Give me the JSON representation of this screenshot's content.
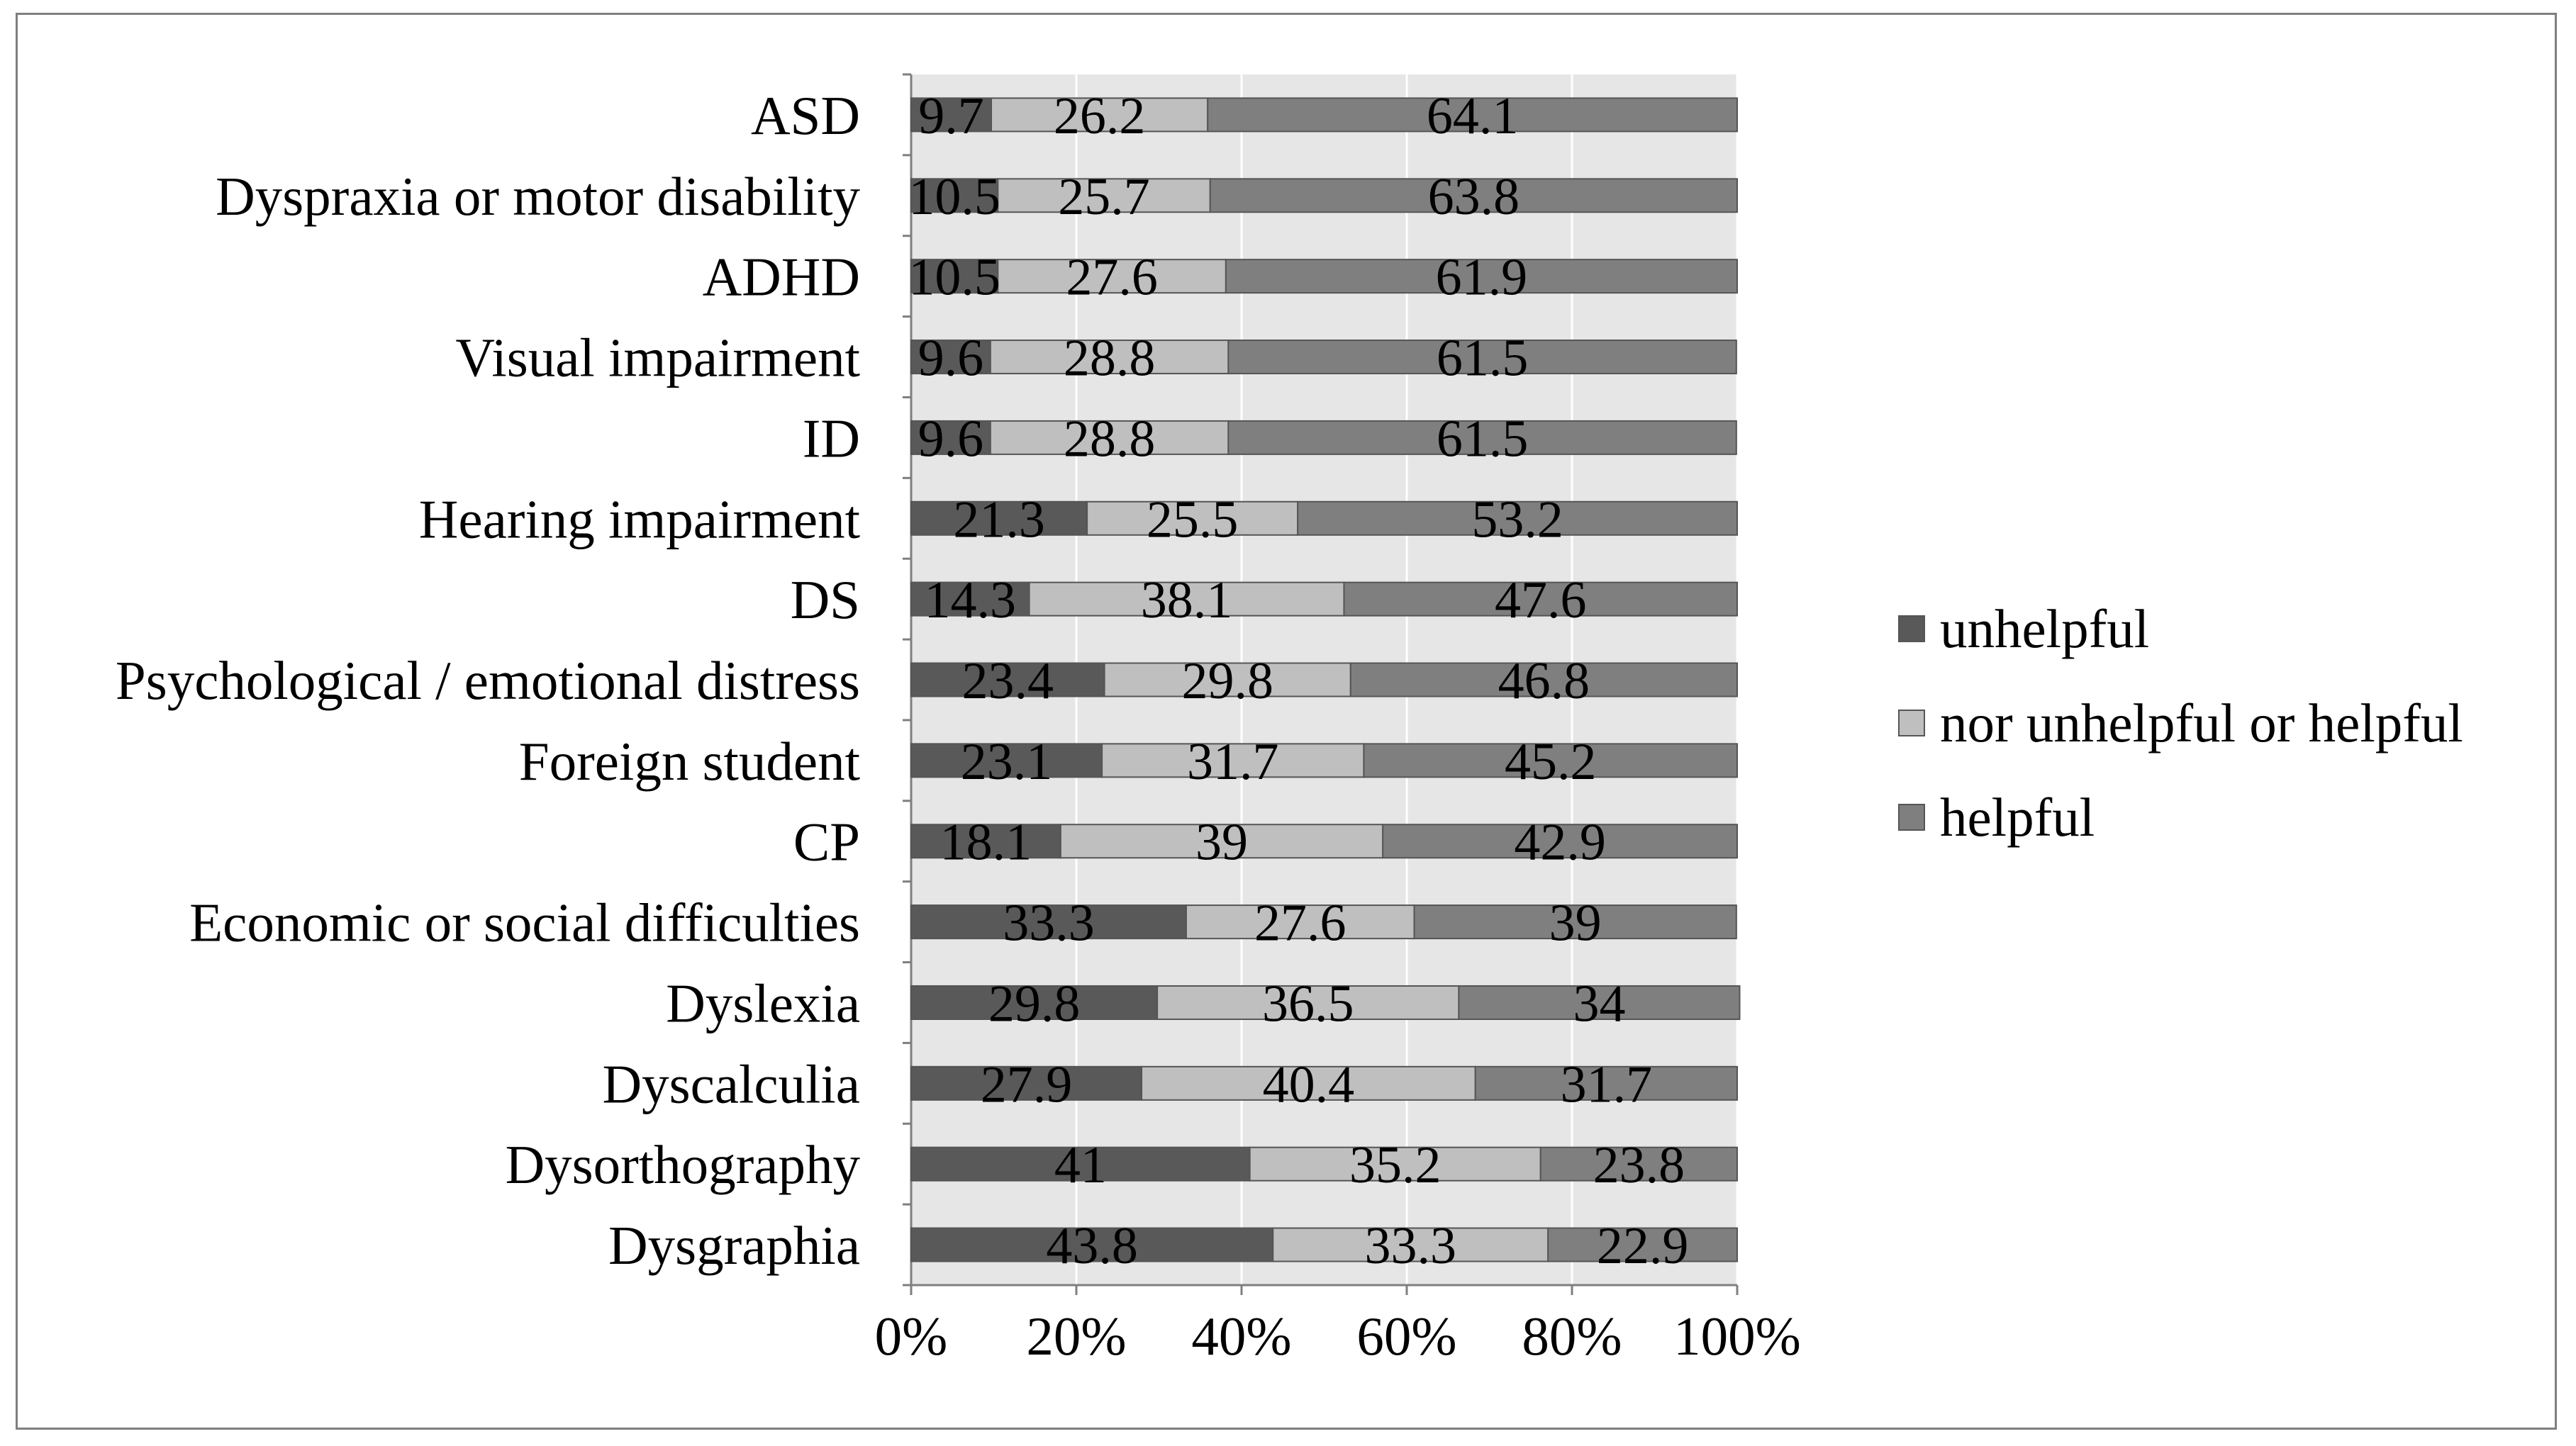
{
  "chart_data": {
    "type": "bar",
    "orientation": "horizontal",
    "stacked": "percent",
    "categories": [
      "ASD",
      "Dyspraxia or motor disability",
      "ADHD",
      "Visual impairment",
      "ID",
      "Hearing impairment",
      "DS",
      "Psychological / emotional distress",
      "Foreign student",
      "CP",
      "Economic or social difficulties",
      "Dyslexia",
      "Dyscalculia",
      "Dysorthography",
      "Dysgraphia"
    ],
    "series": [
      {
        "name": "unhelpful",
        "color": "#595959",
        "values": [
          9.7,
          10.5,
          10.5,
          9.6,
          9.6,
          21.3,
          14.3,
          23.4,
          23.1,
          18.1,
          33.3,
          29.8,
          27.9,
          41,
          43.8
        ]
      },
      {
        "name": "nor unhelpful or helpful",
        "color": "#bfbfbf",
        "values": [
          26.2,
          25.7,
          27.6,
          28.8,
          28.8,
          25.5,
          38.1,
          29.8,
          31.7,
          39,
          27.6,
          36.5,
          40.4,
          35.2,
          33.3
        ]
      },
      {
        "name": "helpful",
        "color": "#7f7f7f",
        "values": [
          64.1,
          63.8,
          61.9,
          61.5,
          61.5,
          53.2,
          47.6,
          46.8,
          45.2,
          42.9,
          39,
          34,
          31.7,
          23.8,
          22.9
        ]
      }
    ],
    "x_ticks": [
      "0%",
      "20%",
      "40%",
      "60%",
      "80%",
      "100%"
    ],
    "xlim": [
      0,
      100
    ],
    "title": "",
    "xlabel": "",
    "ylabel": "",
    "legend_position": "right",
    "plot_background": "#e6e6e6",
    "grid": "vertical"
  }
}
